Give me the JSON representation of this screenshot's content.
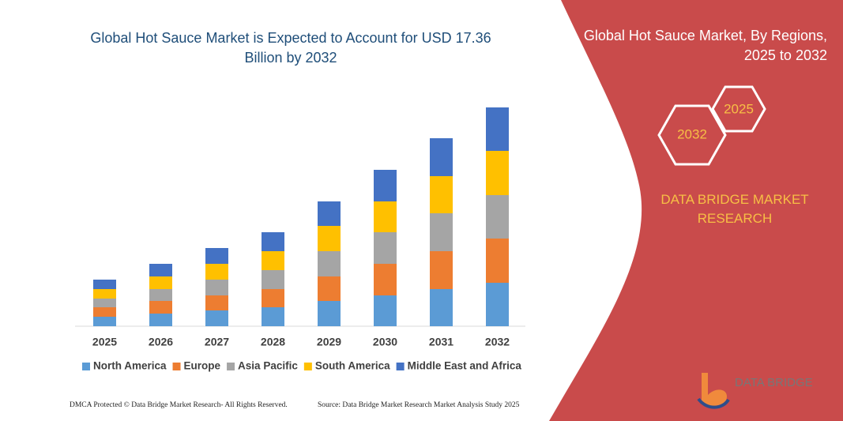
{
  "chart_data": {
    "type": "bar",
    "stacked": true,
    "title": "Global Hot Sauce Market is Expected to Account for USD 17.36 Billion by 2032",
    "categories": [
      "2025",
      "2026",
      "2027",
      "2028",
      "2029",
      "2030",
      "2031",
      "2032"
    ],
    "series": [
      {
        "name": "North America",
        "color": "#5b9bd5",
        "values": [
          12,
          16,
          20,
          24,
          32,
          39,
          47,
          55
        ]
      },
      {
        "name": "Europe",
        "color": "#ed7d31",
        "values": [
          12,
          16,
          19,
          23,
          31,
          40,
          48,
          56
        ]
      },
      {
        "name": "Asia Pacific",
        "color": "#a5a5a5",
        "values": [
          11,
          15,
          20,
          24,
          32,
          40,
          48,
          55
        ]
      },
      {
        "name": "South America",
        "color": "#ffc000",
        "values": [
          12,
          16,
          20,
          24,
          32,
          39,
          47,
          56
        ]
      },
      {
        "name": "Middle East and Africa",
        "color": "#4472c4",
        "values": [
          12,
          16,
          20,
          24,
          31,
          40,
          48,
          55
        ]
      }
    ],
    "ylim": [
      0,
      280
    ],
    "legend": "bottom"
  },
  "panel": {
    "title": "Global Hot Sauce Market, By Regions, 2025 to 2032",
    "hex_small": "2025",
    "hex_large": "2032",
    "brand": "DATA BRIDGE MARKET RESEARCH",
    "logo": "DATA BRIDGE"
  },
  "footer": {
    "left": "DMCA Protected © Data Bridge Market Research- All Rights Reserved.",
    "right": "Source: Data Bridge Market Research  Market Analysis Study 2025"
  }
}
